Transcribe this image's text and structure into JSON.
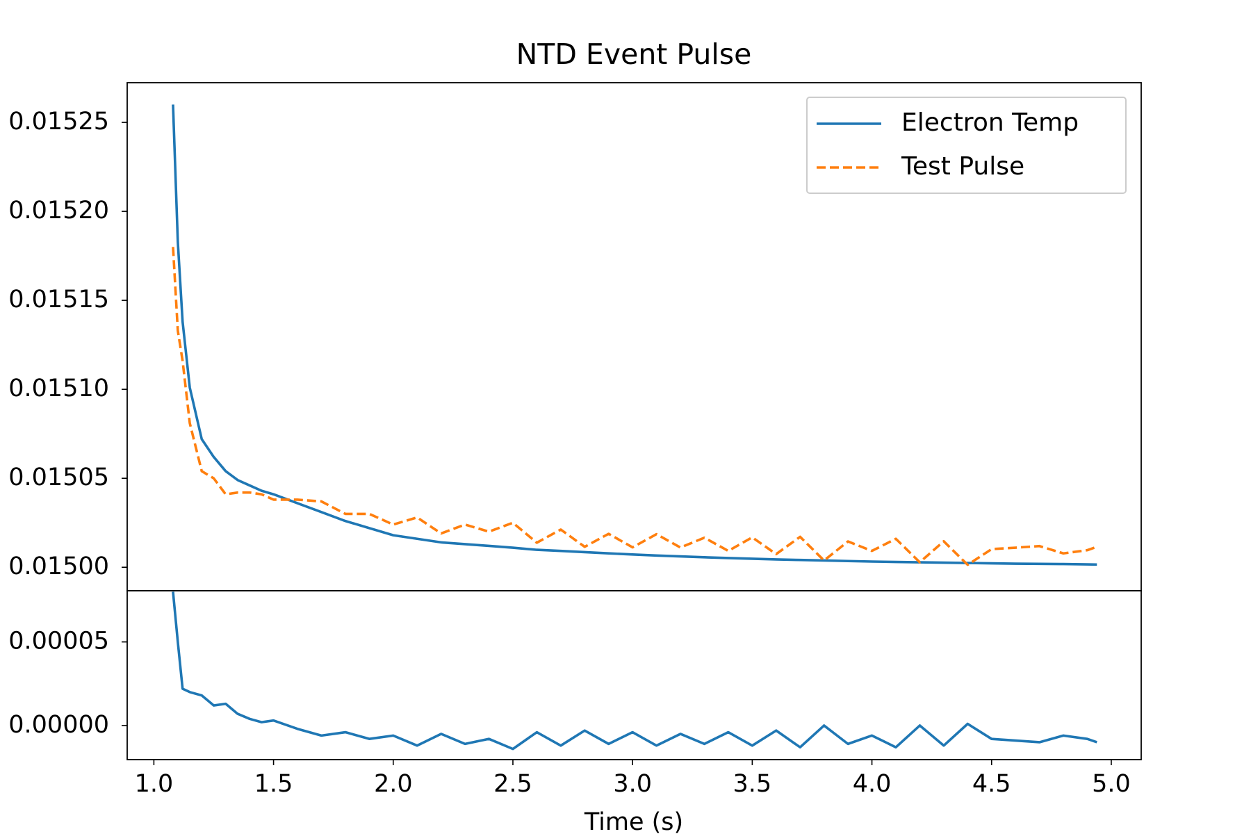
{
  "chart_data": [
    {
      "type": "line",
      "title": "NTD Event Pulse",
      "x": [
        1.08,
        1.1,
        1.12,
        1.15,
        1.2,
        1.25,
        1.3,
        1.35,
        1.4,
        1.45,
        1.5,
        1.6,
        1.7,
        1.8,
        1.9,
        2.0,
        2.1,
        2.2,
        2.3,
        2.4,
        2.5,
        2.6,
        2.7,
        2.8,
        2.9,
        3.0,
        3.1,
        3.2,
        3.3,
        3.4,
        3.5,
        3.6,
        3.7,
        3.8,
        3.9,
        4.0,
        4.1,
        4.2,
        4.3,
        4.4,
        4.5,
        4.6,
        4.7,
        4.8,
        4.9,
        4.94
      ],
      "series": [
        {
          "name": "Electron Temp",
          "color": "#1f77b4",
          "style": "solid",
          "values": [
            0.01526,
            0.015183,
            0.015138,
            0.015101,
            0.015072,
            0.015062,
            0.015054,
            0.015049,
            0.015046,
            0.015043,
            0.015041,
            0.015036,
            0.015031,
            0.015026,
            0.015022,
            0.015018,
            0.015016,
            0.015014,
            0.015013,
            0.015012,
            0.015011,
            0.0150098,
            0.0150092,
            0.0150085,
            0.0150078,
            0.0150072,
            0.0150066,
            0.0150061,
            0.0150056,
            0.0150052,
            0.0150048,
            0.0150044,
            0.0150041,
            0.0150038,
            0.0150035,
            0.0150032,
            0.015003,
            0.0150028,
            0.0150026,
            0.0150024,
            0.0150022,
            0.015002,
            0.0150019,
            0.0150018,
            0.0150016,
            0.0150015
          ]
        },
        {
          "name": "Test Pulse",
          "color": "#ff7f0e",
          "style": "dashed",
          "values": [
            0.01518,
            0.015133,
            0.015116,
            0.015081,
            0.015054,
            0.01505,
            0.015041,
            0.015042,
            0.015042,
            0.015041,
            0.015038,
            0.015038,
            0.015037,
            0.01503,
            0.01503,
            0.015024,
            0.015028,
            0.015019,
            0.015024,
            0.01502,
            0.015025,
            0.0150138,
            0.0150212,
            0.0150115,
            0.0150188,
            0.0150112,
            0.0150186,
            0.0150111,
            0.0150166,
            0.0150092,
            0.0150168,
            0.0150074,
            0.0150171,
            0.0150038,
            0.0150145,
            0.0150092,
            0.015016,
            0.0150028,
            0.0150146,
            0.0150014,
            0.0150102,
            0.015011,
            0.0150119,
            0.0150078,
            0.0150096,
            0.0150115
          ]
        }
      ],
      "xlim": [
        0.8885,
        5.125
      ],
      "ylim": [
        0.0149868,
        0.0152723
      ],
      "yticks": [
        {
          "value": 0.015,
          "label": "0.01500"
        },
        0.01505,
        {
          "value": 0.0151,
          "label": "0.01510"
        },
        0.01515,
        {
          "value": 0.0152,
          "label": "0.01520"
        },
        0.01525
      ],
      "legend": "upper right",
      "grid": false
    },
    {
      "type": "line",
      "xlabel": "Time (s)",
      "x": [
        1.08,
        1.1,
        1.12,
        1.15,
        1.2,
        1.25,
        1.3,
        1.35,
        1.4,
        1.45,
        1.5,
        1.6,
        1.7,
        1.8,
        1.9,
        2.0,
        2.1,
        2.2,
        2.3,
        2.4,
        2.5,
        2.6,
        2.7,
        2.8,
        2.9,
        3.0,
        3.1,
        3.2,
        3.3,
        3.4,
        3.5,
        3.6,
        3.7,
        3.8,
        3.9,
        4.0,
        4.1,
        4.2,
        4.3,
        4.4,
        4.5,
        4.6,
        4.7,
        4.8,
        4.9,
        4.94
      ],
      "color": "#1f77b4",
      "values": [
        8e-05,
        5e-05,
        2.2e-05,
        2e-05,
        1.8e-05,
        1.2e-05,
        1.3e-05,
        7e-06,
        4e-06,
        2e-06,
        3e-06,
        -2e-06,
        -6e-06,
        -4e-06,
        -8e-06,
        -6e-06,
        -1.2e-05,
        -5e-06,
        -1.1e-05,
        -8e-06,
        -1.4e-05,
        -4e-06,
        -1.2e-05,
        -3e-06,
        -1.1e-05,
        -4e-06,
        -1.2e-05,
        -5e-06,
        -1.1e-05,
        -4e-06,
        -1.2e-05,
        -3e-06,
        -1.3e-05,
        0,
        -1.1e-05,
        -6e-06,
        -1.3e-05,
        0,
        -1.2e-05,
        1e-06,
        -8e-06,
        -9e-06,
        -1e-05,
        -6e-06,
        -8e-06,
        -1e-05
      ],
      "xlim": [
        0.8885,
        5.125
      ],
      "ylim": [
        -2.04e-05,
        8.06e-05
      ],
      "xticks": [
        {
          "value": 1,
          "label": "1.0"
        },
        1.5,
        {
          "value": 2,
          "label": "2.0"
        },
        2.5,
        {
          "value": 3,
          "label": "3.0"
        },
        3.5,
        {
          "value": 4,
          "label": "4.0"
        },
        4.5,
        {
          "value": 5,
          "label": "5.0"
        }
      ],
      "yticks": [
        {
          "value": 0,
          "label": "0.00000"
        },
        5e-05
      ],
      "grid": false
    }
  ]
}
